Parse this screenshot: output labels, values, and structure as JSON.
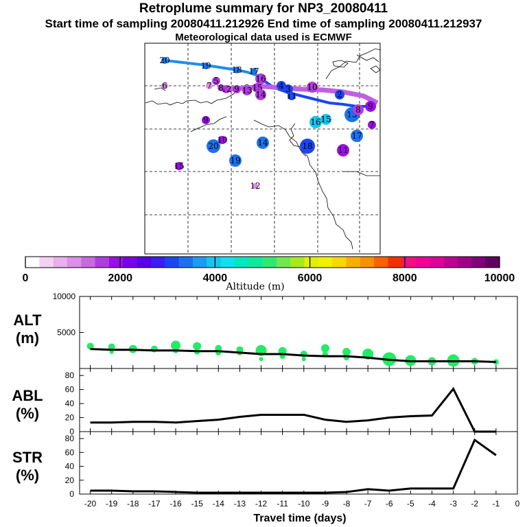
{
  "header": {
    "title": "Retroplume summary for NP3_20080411",
    "sampling": "Start time of sampling 20080411.212926     End time of sampling 20080411.212937",
    "met": "Meteorological data used is ECMWF"
  },
  "colorbar": {
    "label": "Altitude (m)",
    "ticks": [
      "0",
      "2000",
      "4000",
      "6000",
      "8000",
      "10000"
    ],
    "range": [
      0,
      10000
    ],
    "colors": [
      "#ffffff",
      "#f3d2f3",
      "#e8b0ee",
      "#dc8ee8",
      "#c868e2",
      "#b03ce0",
      "#9b0ee6",
      "#7a00e8",
      "#5a00e6",
      "#3c1ef0",
      "#1a46f2",
      "#1a72ee",
      "#1c9cf0",
      "#18c4f0",
      "#10e0f0",
      "#00e8c0",
      "#10e89a",
      "#30e870",
      "#70e850",
      "#a8e820",
      "#e0f000",
      "#f0f000",
      "#f8d800",
      "#f8b000",
      "#f89000",
      "#f86000",
      "#f03000",
      "#f01080",
      "#f00098",
      "#e0009a",
      "#c00090",
      "#a00088",
      "#800078",
      "#600060"
    ]
  },
  "map": {
    "points": [
      {
        "label": "20",
        "color": "#1a72ee",
        "size": 5
      },
      {
        "label": "19",
        "color": "#1a72ee",
        "size": 5
      },
      {
        "label": "18",
        "color": "#1a72ee",
        "size": 5
      },
      {
        "label": "17",
        "color": "#1a72ee",
        "size": 5
      },
      {
        "label": "16",
        "color": "#b03ce0",
        "size": 8
      },
      {
        "label": "15",
        "color": "#b03ce0",
        "size": 7
      },
      {
        "label": "14",
        "color": "#b03ce0",
        "size": 8
      },
      {
        "label": "13",
        "color": "#b03ce0",
        "size": 7
      },
      {
        "label": "12",
        "color": "#b03ce0",
        "size": 6
      },
      {
        "label": "11",
        "color": "#1a46f2",
        "size": 6
      },
      {
        "label": "10",
        "color": "#b03ce0",
        "size": 8
      },
      {
        "label": "9",
        "color": "#b03ce0",
        "size": 6
      },
      {
        "label": "8",
        "color": "#b03ce0",
        "size": 5
      },
      {
        "label": "7",
        "color": "#dc8ee8",
        "size": 5
      },
      {
        "label": "6",
        "color": "#dc8ee8",
        "size": 5
      },
      {
        "label": "5",
        "color": "#b03ce0",
        "size": 6
      },
      {
        "label": "4",
        "color": "#1a46f2",
        "size": 7
      },
      {
        "label": "3",
        "color": "#1a46f2",
        "size": 7
      },
      {
        "label": "2",
        "color": "#1a46f2",
        "size": 7
      },
      {
        "label": "20",
        "color": "#1a72ee",
        "size": 10
      },
      {
        "label": "19",
        "color": "#1a72ee",
        "size": 9
      },
      {
        "label": "14",
        "color": "#1a72ee",
        "size": 9
      },
      {
        "label": "18",
        "color": "#1a46f2",
        "size": 11
      },
      {
        "label": "16",
        "color": "#18c4f0",
        "size": 9
      },
      {
        "label": "15",
        "color": "#18c4f0",
        "size": 8
      },
      {
        "label": "13",
        "color": "#1a72ee",
        "size": 11
      },
      {
        "label": "17",
        "color": "#1a72ee",
        "size": 9
      },
      {
        "label": "11",
        "color": "#9b0ee6",
        "size": 9
      },
      {
        "label": "12",
        "color": "#dc8ee8",
        "size": 4
      },
      {
        "label": "15",
        "color": "#9b0ee6",
        "size": 6
      },
      {
        "label": "9",
        "color": "#9b0ee6",
        "size": 6
      },
      {
        "label": "10",
        "color": "#9b0ee6",
        "size": 6
      },
      {
        "label": "9",
        "color": "#9b0ee6",
        "size": 8
      },
      {
        "label": "8",
        "color": "#b03ce0",
        "size": 8
      },
      {
        "label": "7",
        "color": "#9b0ee6",
        "size": 6
      }
    ]
  },
  "chart_data": [
    {
      "type": "scatter",
      "name": "ALT",
      "ylabel": "ALT",
      "yunit": "(m)",
      "ylim": [
        0,
        10000
      ],
      "yticks": [
        "10000",
        "5000"
      ],
      "xlim": [
        -20.5,
        0
      ],
      "x_median": [
        -20,
        -19,
        -18,
        -17,
        -16,
        -15,
        -14,
        -13,
        -12,
        -11,
        -10,
        -9,
        -8,
        -7,
        -6,
        -5,
        -4,
        -3,
        -2,
        -1
      ],
      "median": [
        2700,
        2600,
        2600,
        2500,
        2500,
        2400,
        2400,
        2200,
        2000,
        2000,
        1800,
        1700,
        1700,
        1500,
        1200,
        1000,
        1000,
        1000,
        1000,
        900
      ],
      "bubbles_x": [
        -20,
        -19,
        -19,
        -18,
        -17,
        -16,
        -16,
        -15,
        -15,
        -14,
        -14,
        -13,
        -13,
        -12,
        -12,
        -11,
        -11,
        -10,
        -10,
        -9,
        -9,
        -8,
        -8,
        -7,
        -6,
        -5,
        -4,
        -3,
        -2,
        -1
      ],
      "bubbles_y": [
        3100,
        3000,
        2300,
        2700,
        2700,
        3200,
        2500,
        3100,
        2300,
        2800,
        2200,
        2600,
        2200,
        2500,
        1300,
        2400,
        1700,
        2000,
        1300,
        2800,
        2000,
        2300,
        1500,
        2000,
        1300,
        1100,
        1000,
        1100,
        1000,
        900
      ],
      "bubbles_r": [
        5,
        5,
        3,
        6,
        5,
        7,
        4,
        6,
        4,
        5,
        4,
        5,
        4,
        8,
        3,
        6,
        4,
        5,
        3,
        6,
        4,
        6,
        4,
        8,
        10,
        8,
        6,
        9,
        5,
        4
      ]
    },
    {
      "type": "line",
      "name": "ABL",
      "ylabel": "ABL",
      "yunit": "(%)",
      "ylim": [
        0,
        90
      ],
      "yticks": [
        "80",
        "60",
        "40",
        "20",
        "0"
      ],
      "x": [
        -20,
        -19,
        -18,
        -17,
        -16,
        -15,
        -14,
        -13,
        -12,
        -11,
        -10,
        -9,
        -8,
        -7,
        -6,
        -5,
        -4,
        -3,
        -2,
        -1
      ],
      "values": [
        13,
        13,
        14,
        14,
        13,
        15,
        17,
        21,
        24,
        24,
        24,
        17,
        14,
        16,
        20,
        22,
        23,
        61,
        0,
        0
      ]
    },
    {
      "type": "line",
      "name": "STR",
      "ylabel": "STR",
      "yunit": "(%)",
      "ylim": [
        0,
        90
      ],
      "yticks": [
        "80",
        "60",
        "40",
        "20",
        "0"
      ],
      "x": [
        -20,
        -19,
        -18,
        -17,
        -16,
        -15,
        -14,
        -13,
        -12,
        -11,
        -10,
        -9,
        -8,
        -7,
        -6,
        -5,
        -4,
        -3,
        -2,
        -1
      ],
      "values": [
        5,
        5,
        4,
        4,
        3,
        2,
        2,
        2,
        2,
        2,
        2,
        2,
        3,
        7,
        5,
        8,
        8,
        8,
        78,
        56
      ],
      "xlabel": "Travel time (days)",
      "xticks": [
        "-20",
        "-19",
        "-18",
        "-17",
        "-16",
        "-15",
        "-14",
        "-13",
        "-12",
        "-11",
        "-10",
        "-9",
        "-8",
        "-7",
        "-6",
        "-5",
        "-4",
        "-3",
        "-2",
        "-1",
        "0"
      ]
    }
  ]
}
